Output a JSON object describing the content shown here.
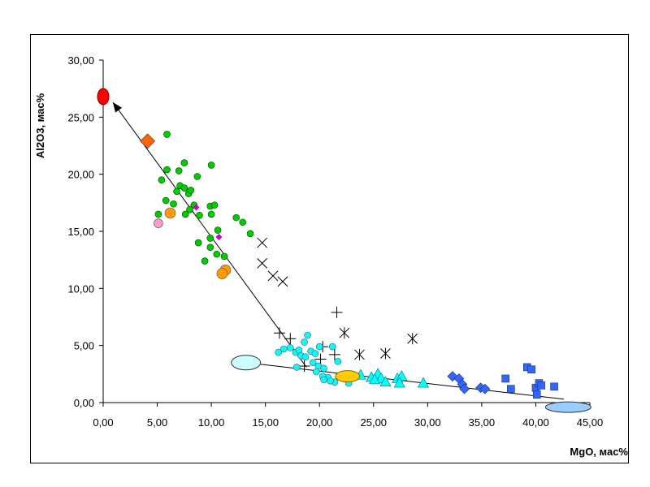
{
  "chart_data": {
    "type": "scatter",
    "xlabel": "MgO, мас%",
    "ylabel": "Al2O3, мас%",
    "xlim": [
      0,
      45
    ],
    "ylim": [
      0,
      30
    ],
    "x_ticks": [
      "0,00",
      "5,00",
      "10,00",
      "15,00",
      "20,00",
      "25,00",
      "30,00",
      "35,00",
      "40,00",
      "45,00"
    ],
    "y_ticks": [
      "0,00",
      "5,00",
      "10,00",
      "15,00",
      "20,00",
      "25,00",
      "30,00"
    ],
    "grid": false,
    "legend": "none",
    "series": [
      {
        "marker": "circle",
        "color": "#00cc00",
        "points": [
          [
            5.9,
            23.5
          ],
          [
            5.4,
            19.5
          ],
          [
            5.9,
            20.4
          ],
          [
            7.0,
            20.3
          ],
          [
            7.5,
            21.0
          ],
          [
            8.7,
            19.8
          ],
          [
            10.0,
            20.8
          ],
          [
            6.8,
            18.5
          ],
          [
            7.1,
            19.0
          ],
          [
            7.5,
            18.8
          ],
          [
            7.9,
            18.3
          ],
          [
            8.1,
            18.6
          ],
          [
            5.8,
            17.7
          ],
          [
            6.5,
            17.4
          ],
          [
            7.6,
            16.5
          ],
          [
            8.4,
            17.3
          ],
          [
            8.0,
            16.9
          ],
          [
            9.9,
            17.2
          ],
          [
            10.3,
            17.3
          ],
          [
            8.9,
            16.4
          ],
          [
            10.0,
            16.5
          ],
          [
            12.3,
            16.2
          ],
          [
            12.9,
            15.8
          ],
          [
            13.6,
            14.8
          ],
          [
            10.6,
            15.1
          ],
          [
            5.1,
            16.5
          ],
          [
            8.8,
            14.0
          ],
          [
            9.9,
            13.6
          ],
          [
            10.5,
            13.0
          ],
          [
            11.2,
            12.8
          ],
          [
            9.4,
            12.4
          ],
          [
            9.9,
            14.4
          ]
        ]
      },
      {
        "marker": "circle",
        "color": "#ff9900",
        "points": [
          [
            6.2,
            16.6
          ],
          [
            11.3,
            11.6
          ],
          [
            11.0,
            11.3
          ]
        ]
      },
      {
        "marker": "circle",
        "color": "#ff99cc",
        "points": [
          [
            5.1,
            15.7
          ]
        ]
      },
      {
        "marker": "diamond-small",
        "color": "#cc00cc",
        "points": [
          [
            8.6,
            17.1
          ],
          [
            10.7,
            14.5
          ]
        ]
      },
      {
        "marker": "diamond",
        "color": "#ff6600",
        "points": [
          [
            4.1,
            22.9
          ]
        ]
      },
      {
        "marker": "ellipse-v",
        "color": "#ff0000",
        "points": [
          [
            0.0,
            26.8
          ]
        ]
      },
      {
        "marker": "cross-x",
        "color": "#000000",
        "points": [
          [
            14.7,
            14.0
          ],
          [
            14.7,
            12.2
          ],
          [
            15.7,
            11.1
          ],
          [
            16.6,
            10.6
          ]
        ]
      },
      {
        "marker": "plus",
        "color": "#000000",
        "points": [
          [
            16.3,
            6.1
          ],
          [
            17.3,
            5.6
          ],
          [
            21.6,
            7.9
          ],
          [
            20.3,
            4.9
          ],
          [
            21.4,
            4.2
          ],
          [
            20.1,
            3.8
          ],
          [
            18.6,
            3.2
          ]
        ]
      },
      {
        "marker": "asterisk",
        "color": "#000000",
        "points": [
          [
            22.3,
            6.1
          ],
          [
            23.7,
            4.2
          ],
          [
            26.1,
            4.3
          ],
          [
            28.6,
            5.6
          ]
        ]
      },
      {
        "marker": "circle",
        "color": "#00ffff",
        "points": [
          [
            16.2,
            4.4
          ],
          [
            16.7,
            4.7
          ],
          [
            17.3,
            4.8
          ],
          [
            17.8,
            4.4
          ],
          [
            18.1,
            4.6
          ],
          [
            18.6,
            5.3
          ],
          [
            18.9,
            5.9
          ],
          [
            19.2,
            4.5
          ],
          [
            19.6,
            4.3
          ],
          [
            20.0,
            4.9
          ],
          [
            18.3,
            4.1
          ],
          [
            18.7,
            4.0
          ],
          [
            19.4,
            3.5
          ],
          [
            19.9,
            3.2
          ],
          [
            20.4,
            3.0
          ],
          [
            21.2,
            4.9
          ],
          [
            21.7,
            3.6
          ],
          [
            17.9,
            3.1
          ],
          [
            20.8,
            2.2
          ],
          [
            21.4,
            1.8
          ],
          [
            20.3,
            2.3
          ],
          [
            22.7,
            1.7
          ],
          [
            21.0,
            1.9
          ],
          [
            19.7,
            2.7
          ],
          [
            20.4,
            2.0
          ]
        ]
      },
      {
        "marker": "triangle",
        "color": "#00ffff",
        "points": [
          [
            23.8,
            2.4
          ],
          [
            24.8,
            2.2
          ],
          [
            25.4,
            2.5
          ],
          [
            25.7,
            2.1
          ],
          [
            26.1,
            1.8
          ],
          [
            27.2,
            2.1
          ],
          [
            27.6,
            2.3
          ],
          [
            27.4,
            1.7
          ],
          [
            29.6,
            1.7
          ],
          [
            25.1,
            2.0
          ]
        ]
      },
      {
        "marker": "ellipse-h",
        "color": "#ffcc00",
        "points": [
          [
            22.6,
            2.3
          ]
        ]
      },
      {
        "marker": "diamond",
        "color": "#3366ff",
        "points": [
          [
            32.3,
            2.3
          ],
          [
            32.9,
            2.1
          ],
          [
            33.2,
            1.6
          ],
          [
            33.4,
            1.2
          ],
          [
            34.9,
            1.3
          ],
          [
            35.3,
            1.2
          ]
        ]
      },
      {
        "marker": "square",
        "color": "#3366ff",
        "points": [
          [
            37.2,
            2.1
          ],
          [
            37.7,
            1.2
          ],
          [
            39.2,
            3.1
          ],
          [
            39.6,
            2.9
          ],
          [
            40.0,
            1.3
          ],
          [
            40.3,
            1.7
          ],
          [
            40.5,
            1.5
          ],
          [
            40.1,
            0.7
          ],
          [
            41.7,
            1.4
          ]
        ]
      },
      {
        "marker": "ellipse-h-light",
        "color": "#99ccff",
        "points": [
          [
            43.0,
            -0.4
          ]
        ]
      },
      {
        "marker": "ellipse-h-pale",
        "color": "#ccffff",
        "points": [
          [
            13.2,
            3.5
          ]
        ]
      }
    ],
    "trend_lines": [
      {
        "from": [
          0.9,
          26.3
        ],
        "to": [
          18.8,
          3.1
        ]
      },
      {
        "from": [
          13.2,
          3.5
        ],
        "to": [
          42.6,
          0.3
        ]
      }
    ]
  }
}
